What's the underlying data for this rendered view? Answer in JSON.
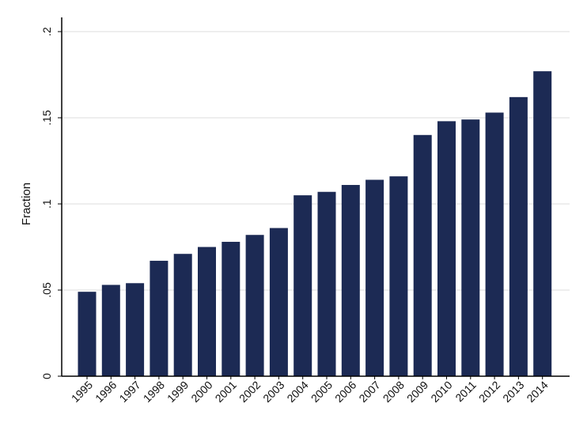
{
  "chart_data": {
    "type": "bar",
    "title": "",
    "xlabel": "",
    "ylabel": "Fraction",
    "categories": [
      "1995",
      "1996",
      "1997",
      "1998",
      "1999",
      "2000",
      "2001",
      "2002",
      "2003",
      "2004",
      "2005",
      "2006",
      "2007",
      "2008",
      "2009",
      "2010",
      "2011",
      "2012",
      "2013",
      "2014"
    ],
    "values": [
      0.049,
      0.053,
      0.054,
      0.067,
      0.071,
      0.075,
      0.078,
      0.082,
      0.086,
      0.105,
      0.107,
      0.111,
      0.114,
      0.116,
      0.14,
      0.148,
      0.149,
      0.153,
      0.162,
      0.177
    ],
    "ylim": [
      0,
      0.2
    ],
    "yticks": [
      0,
      0.05,
      0.1,
      0.15,
      0.2
    ],
    "ytick_labels": [
      "0",
      ".05",
      ".1",
      ".15",
      ".2"
    ],
    "grid": true,
    "legend": "none",
    "colors": {
      "bar": "#1c2a54",
      "grid": "#dcdcdc",
      "axis": "#000000"
    }
  }
}
